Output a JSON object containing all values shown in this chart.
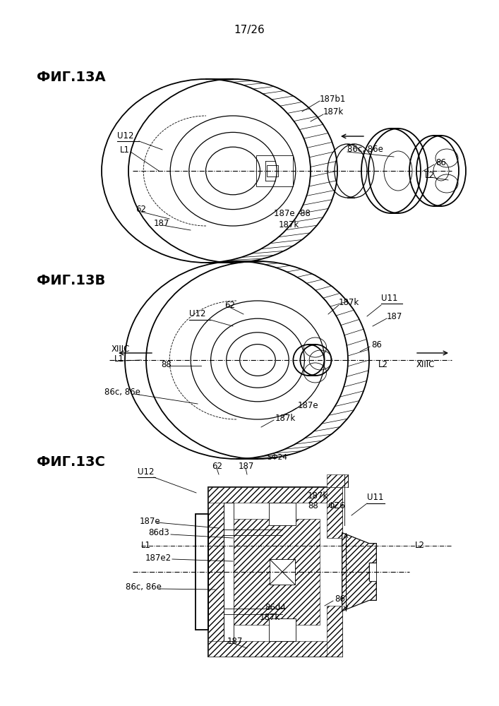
{
  "page_number": "17/26",
  "fig_labels": [
    "ФИГ.13А",
    "ФИГ.13B",
    "ФИГ.13С"
  ],
  "background_color": "#ffffff",
  "page_num_fontsize": 11,
  "annotation_fontsize": 8.5,
  "fig_label_fontsize": 14
}
